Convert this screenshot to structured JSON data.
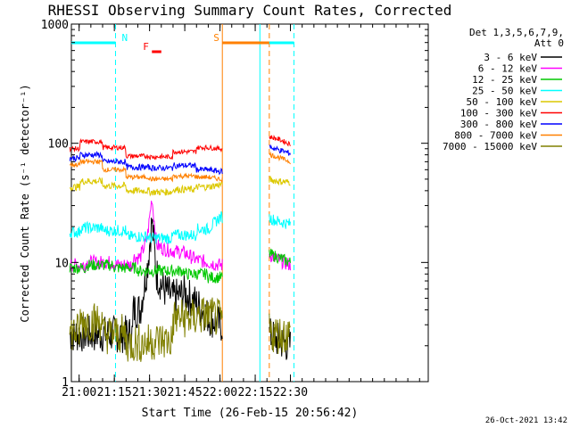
{
  "chart_data": {
    "type": "line",
    "title": "RHESSI Observing Summary Count Rates, Corrected",
    "xlabel": "Start Time (26-Feb-15 20:56:42)",
    "ylabel": "Corrected Count Rate (s⁻¹ detector⁻¹)",
    "y_scale": "log",
    "xlim": [
      "20:56:42",
      "23:28:42"
    ],
    "ylim": [
      1,
      1000
    ],
    "x_ticks": [
      "21:00",
      "21:15",
      "21:30",
      "21:45",
      "22:00",
      "22:15",
      "22:30"
    ],
    "y_ticks": [
      {
        "value": 1,
        "label": "1"
      },
      {
        "value": 10,
        "label": "10"
      },
      {
        "value": 100,
        "label": "100"
      },
      {
        "value": 1000,
        "label": "1000"
      }
    ],
    "legend": {
      "placement": "right",
      "header": [
        "Det 1,3,5,6,7,9,",
        "Att 0"
      ]
    },
    "series": [
      {
        "name": "3 - 6 keV",
        "color": "#000000",
        "x": [
          "20:56",
          "21:10",
          "21:20",
          "21:26",
          "21:29",
          "21:31",
          "21:33",
          "21:36",
          "21:40",
          "21:45",
          "21:50",
          "21:55",
          "22:00",
          "22:20",
          "22:25",
          "22:30"
        ],
        "y": [
          2.5,
          2.5,
          2.5,
          4.0,
          9.0,
          22.0,
          8.0,
          6.0,
          5.0,
          5.5,
          4.5,
          3.5,
          3.0,
          2.5,
          2.2,
          2.0
        ]
      },
      {
        "name": "6 - 12 keV",
        "color": "#ff00ff",
        "x": [
          "20:56",
          "21:10",
          "21:20",
          "21:26",
          "21:29",
          "21:31",
          "21:33",
          "21:36",
          "21:40",
          "21:45",
          "21:50",
          "21:55",
          "22:00",
          "22:20",
          "22:25",
          "22:30"
        ],
        "y": [
          9.5,
          10.0,
          9.5,
          11.0,
          16.0,
          35.0,
          14.0,
          13.0,
          12.5,
          12.0,
          10.5,
          10.0,
          9.5,
          12.0,
          10.5,
          9.5
        ]
      },
      {
        "name": "12 - 25 keV",
        "color": "#00c800",
        "x": [
          "20:56",
          "21:10",
          "21:20",
          "21:30",
          "21:40",
          "21:50",
          "22:00",
          "22:20",
          "22:25",
          "22:30"
        ],
        "y": [
          9.0,
          9.5,
          9.0,
          8.5,
          8.5,
          8.0,
          7.5,
          12.0,
          11.0,
          10.0
        ]
      },
      {
        "name": "25 - 50 keV",
        "color": "#00ffff",
        "x": [
          "20:56",
          "21:05",
          "21:15",
          "21:25",
          "21:35",
          "21:45",
          "21:55",
          "22:00",
          "22:20",
          "22:25",
          "22:30"
        ],
        "y": [
          18.0,
          19.5,
          18.5,
          16.5,
          16.0,
          17.0,
          19.0,
          24.0,
          24.0,
          22.0,
          21.0
        ]
      },
      {
        "name": "50 - 100 keV",
        "color": "#dcc800",
        "x": [
          "20:56",
          "21:05",
          "21:15",
          "21:25",
          "21:35",
          "21:45",
          "21:55",
          "22:00",
          "22:20",
          "22:25",
          "22:30"
        ],
        "y": [
          43.0,
          48.0,
          44.0,
          40.0,
          39.0,
          41.0,
          43.0,
          45.0,
          50.0,
          48.0,
          47.0
        ]
      },
      {
        "name": "100 - 300 keV",
        "color": "#ff0000",
        "x": [
          "20:56",
          "21:05",
          "21:15",
          "21:25",
          "21:35",
          "21:45",
          "21:55",
          "22:00",
          "22:20",
          "22:25",
          "22:30"
        ],
        "y": [
          90.0,
          103.0,
          92.0,
          78.0,
          77.0,
          85.0,
          92.0,
          90.0,
          115.0,
          108.0,
          98.0
        ]
      },
      {
        "name": "300 - 800 keV",
        "color": "#0000ff",
        "x": [
          "20:56",
          "21:05",
          "21:15",
          "21:25",
          "21:35",
          "21:45",
          "21:55",
          "22:00",
          "22:20",
          "22:25",
          "22:30"
        ],
        "y": [
          75.0,
          80.0,
          70.0,
          63.0,
          62.0,
          65.0,
          60.0,
          58.0,
          95.0,
          88.0,
          82.0
        ]
      },
      {
        "name": "800 - 7000 keV",
        "color": "#ff8000",
        "x": [
          "20:56",
          "21:05",
          "21:15",
          "21:25",
          "21:35",
          "21:45",
          "21:55",
          "22:00",
          "22:20",
          "22:25",
          "22:30"
        ],
        "y": [
          66.0,
          70.0,
          60.0,
          52.0,
          50.0,
          53.0,
          52.0,
          50.0,
          82.0,
          76.0,
          70.0
        ]
      },
      {
        "name": "7000 - 15000 keV",
        "color": "#808000",
        "x": [
          "20:56",
          "21:05",
          "21:15",
          "21:25",
          "21:35",
          "21:45",
          "21:55",
          "22:00",
          "22:20",
          "22:25",
          "22:30"
        ],
        "y": [
          2.6,
          3.2,
          2.5,
          2.1,
          2.2,
          3.4,
          3.6,
          3.3,
          2.6,
          2.5,
          2.5
        ]
      }
    ],
    "flags": [
      {
        "label": "N",
        "color": "#00ffff",
        "y_position": "top",
        "intervals": [
          [
            "20:56:42",
            "21:15:30"
          ],
          [
            "22:17:00",
            "22:31:30"
          ]
        ]
      },
      {
        "label": "S",
        "color": "#ff8000",
        "y_position": "top",
        "intervals": [
          [
            "22:01:00",
            "22:21:00"
          ]
        ]
      },
      {
        "label": "F",
        "color": "#ff0000",
        "y_position": "upper",
        "intervals": [
          [
            "21:31:00",
            "21:35:00"
          ]
        ]
      }
    ],
    "markers": [
      {
        "time": "21:15:30",
        "color": "#00ffff",
        "style": "dashed"
      },
      {
        "time": "22:01:00",
        "color": "#ff8000",
        "style": "solid"
      },
      {
        "time": "22:17:00",
        "color": "#00ffff",
        "style": "solid"
      },
      {
        "time": "22:21:00",
        "color": "#ff8000",
        "style": "dashed"
      },
      {
        "time": "22:31:30",
        "color": "#00ffff",
        "style": "dashed"
      }
    ],
    "gaps": [
      [
        "22:01:00",
        "22:21:00"
      ]
    ]
  },
  "footer_timestamp": "26-Oct-2021 13:42"
}
